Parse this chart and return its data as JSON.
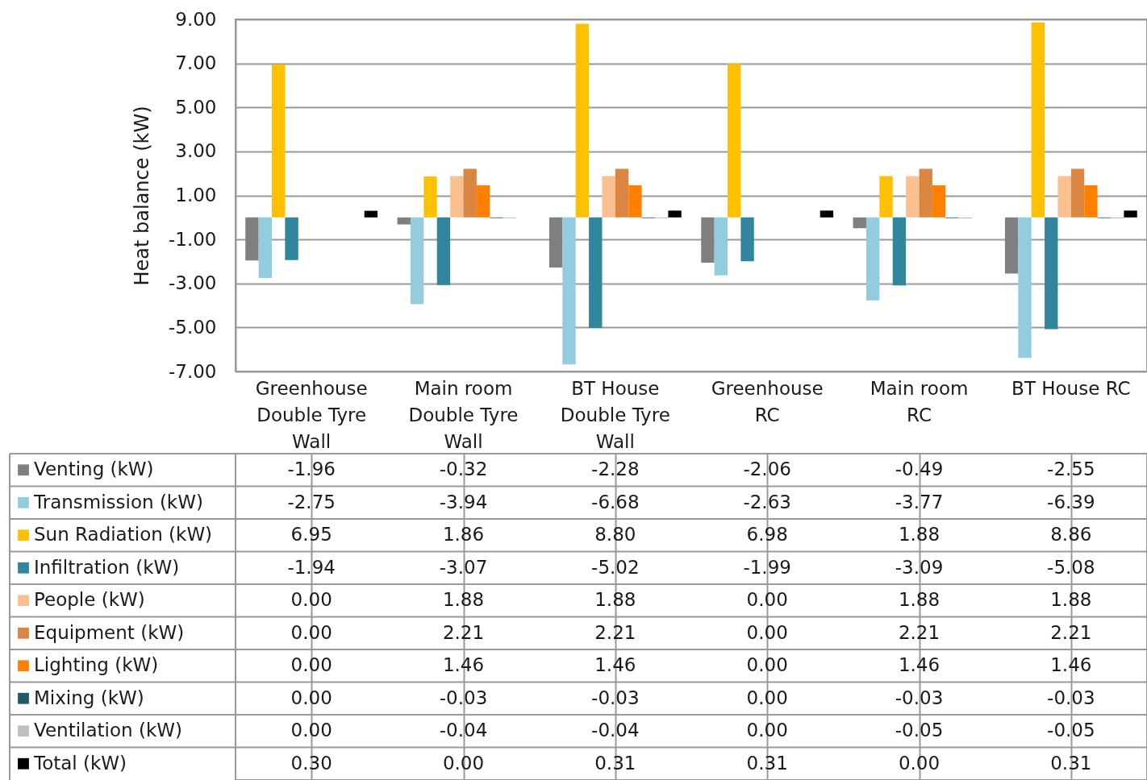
{
  "chart_data": {
    "type": "bar",
    "ylabel": "Heat balance (kW)",
    "categories": [
      "Greenhouse Double Tyre Wall",
      "Main room Double Tyre Wall",
      "BT House Double Tyre Wall",
      "Greenhouse RC",
      "Main room RC",
      "BT House RC"
    ],
    "series": [
      {
        "name": "Venting (kW)",
        "color": "#7f7f7f",
        "values": [
          -1.96,
          -0.32,
          -2.28,
          -2.06,
          -0.49,
          -2.55
        ],
        "value_labels": [
          "-1.96",
          "-0.32",
          "-2.28",
          "-2.06",
          "-0.49",
          "-2.55"
        ]
      },
      {
        "name": "Transmission (kW)",
        "color": "#93cddd",
        "values": [
          -2.75,
          -3.94,
          -6.68,
          -2.63,
          -3.77,
          -6.39
        ],
        "value_labels": [
          "-2.75",
          "-3.94",
          "-6.68",
          "-2.63",
          "-3.77",
          "-6.39"
        ]
      },
      {
        "name": "Sun Radiation (kW)",
        "color": "#ffc000",
        "values": [
          6.95,
          1.86,
          8.8,
          6.98,
          1.88,
          8.86
        ],
        "value_labels": [
          "6.95",
          "1.86",
          "8.80",
          "6.98",
          "1.88",
          "8.86"
        ]
      },
      {
        "name": "Infiltration (kW)",
        "color": "#31859c",
        "values": [
          -1.94,
          -3.07,
          -5.02,
          -1.99,
          -3.09,
          -5.08
        ],
        "value_labels": [
          "-1.94",
          "-3.07",
          "-5.02",
          "-1.99",
          "-3.09",
          "-5.08"
        ]
      },
      {
        "name": "People (kW)",
        "color": "#fac090",
        "values": [
          0,
          1.88,
          1.88,
          0,
          1.88,
          1.88
        ],
        "value_labels": [
          "0.00",
          "1.88",
          "1.88",
          "0.00",
          "1.88",
          "1.88"
        ]
      },
      {
        "name": "Equipment (kW)",
        "color": "#da8540",
        "values": [
          0,
          2.21,
          2.21,
          0,
          2.21,
          2.21
        ],
        "value_labels": [
          "0.00",
          "2.21",
          "2.21",
          "0.00",
          "2.21",
          "2.21"
        ]
      },
      {
        "name": "Lighting (kW)",
        "color": "#ff8000",
        "values": [
          0,
          1.46,
          1.46,
          0,
          1.46,
          1.46
        ],
        "value_labels": [
          "0.00",
          "1.46",
          "1.46",
          "0.00",
          "1.46",
          "1.46"
        ]
      },
      {
        "name": "Mixing (kW)",
        "color": "#215968",
        "values": [
          0,
          -0.03,
          -0.03,
          0,
          -0.03,
          -0.03
        ],
        "value_labels": [
          "0.00",
          "-0.03",
          "-0.03",
          "0.00",
          "-0.03",
          "-0.03"
        ]
      },
      {
        "name": "Ventilation (kW)",
        "color": "#bfbfbf",
        "values": [
          0,
          -0.04,
          -0.04,
          0,
          -0.05,
          -0.05
        ],
        "value_labels": [
          "0.00",
          "-0.04",
          "-0.04",
          "0.00",
          "-0.05",
          "-0.05"
        ]
      },
      {
        "name": "Total (kW)",
        "color": "#000000",
        "values": [
          0.3,
          0,
          0.31,
          0.31,
          0,
          0.31
        ],
        "value_labels": [
          "0.30",
          "0.00",
          "0.31",
          "0.31",
          "0.00",
          "0.31"
        ]
      }
    ],
    "ylim": [
      -7,
      9
    ],
    "yticks": [
      {
        "value": -7,
        "label": "-7.00"
      },
      {
        "value": -5,
        "label": "-5.00"
      },
      {
        "value": -3,
        "label": "-3.00"
      },
      {
        "value": -1,
        "label": "-1.00"
      },
      {
        "value": 1,
        "label": "1.00"
      },
      {
        "value": 3,
        "label": "3.00"
      },
      {
        "value": 5,
        "label": "5.00"
      },
      {
        "value": 7,
        "label": "7.00"
      },
      {
        "value": 9,
        "label": "9.00"
      }
    ],
    "grid": true,
    "legend": "bottom"
  }
}
